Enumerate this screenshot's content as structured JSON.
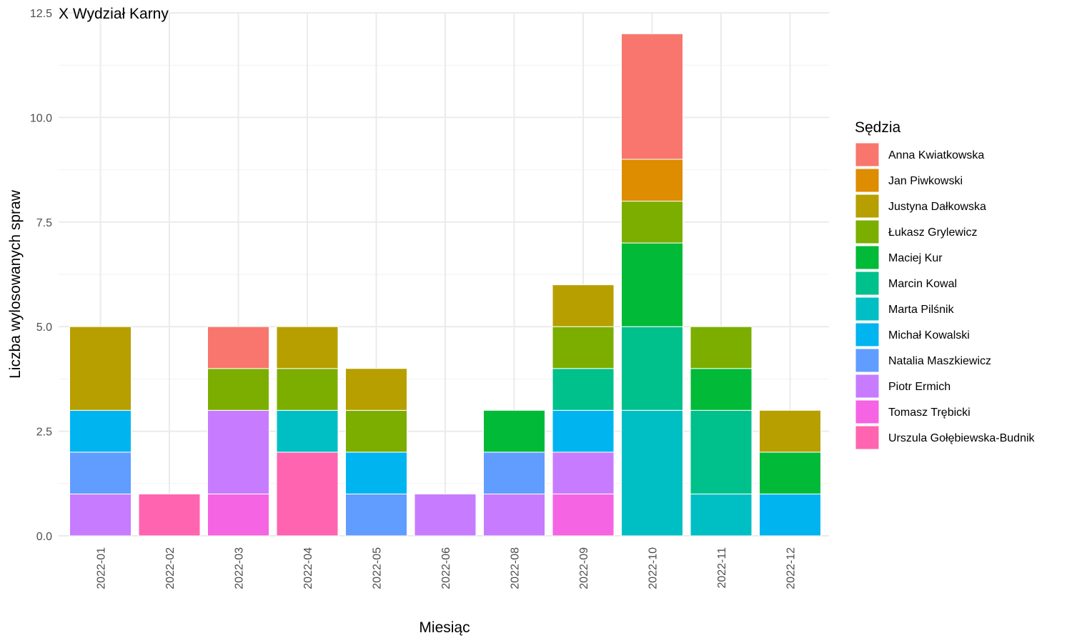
{
  "chart_data": {
    "type": "bar",
    "stacked": true,
    "title": "X Wydział Karny",
    "xlabel": "Miesiąc",
    "ylabel": "Liczba wylosowanych spraw",
    "ylim": [
      0,
      12.5
    ],
    "y_ticks": [
      0,
      2.5,
      5,
      7.5,
      10,
      12.5
    ],
    "y_tick_labels": [
      "0.0",
      "2.5",
      "5.0",
      "7.5",
      "10.0",
      "12.5"
    ],
    "grid": true,
    "legend_title": "Sędzia",
    "legend_position": "right",
    "categories": [
      "2022-01",
      "2022-02",
      "2022-03",
      "2022-04",
      "2022-05",
      "2022-06",
      "2022-08",
      "2022-09",
      "2022-10",
      "2022-11",
      "2022-12"
    ],
    "series": [
      {
        "name": "Anna Kwiatkowska",
        "color": "#F8766D",
        "values": [
          0,
          0,
          1,
          0,
          0,
          0,
          0,
          0,
          3,
          0,
          0
        ]
      },
      {
        "name": "Jan Piwkowski",
        "color": "#DE8C00",
        "values": [
          0,
          0,
          0,
          0,
          0,
          0,
          0,
          0,
          1,
          0,
          0
        ]
      },
      {
        "name": "Justyna Dałkowska",
        "color": "#B79F00",
        "values": [
          2,
          0,
          0,
          1,
          1,
          0,
          0,
          1,
          0,
          0,
          1
        ]
      },
      {
        "name": "Łukasz Grylewicz",
        "color": "#7CAE00",
        "values": [
          0,
          0,
          1,
          1,
          1,
          0,
          0,
          1,
          1,
          1,
          0
        ]
      },
      {
        "name": "Maciej Kur",
        "color": "#00BA38",
        "values": [
          0,
          0,
          0,
          0,
          0,
          0,
          1,
          0,
          2,
          1,
          1
        ]
      },
      {
        "name": "Marcin Kowal",
        "color": "#00C08B",
        "values": [
          0,
          0,
          0,
          0,
          0,
          0,
          0,
          1,
          2,
          2,
          0
        ]
      },
      {
        "name": "Marta Pilśnik",
        "color": "#00BFC4",
        "values": [
          0,
          0,
          0,
          1,
          0,
          0,
          0,
          0,
          3,
          1,
          0
        ]
      },
      {
        "name": "Michał Kowalski",
        "color": "#00B4F0",
        "values": [
          1,
          0,
          0,
          0,
          1,
          0,
          0,
          1,
          0,
          0,
          1
        ]
      },
      {
        "name": "Natalia Maszkiewicz",
        "color": "#619CFF",
        "values": [
          1,
          0,
          0,
          0,
          1,
          0,
          1,
          0,
          0,
          0,
          0
        ]
      },
      {
        "name": "Piotr Ermich",
        "color": "#C77CFF",
        "values": [
          1,
          0,
          2,
          0,
          0,
          1,
          1,
          1,
          0,
          0,
          0
        ]
      },
      {
        "name": "Tomasz Trębicki",
        "color": "#F564E3",
        "values": [
          0,
          0,
          1,
          0,
          0,
          0,
          0,
          1,
          0,
          0,
          0
        ]
      },
      {
        "name": "Urszula Gołębiewska-Budnik",
        "color": "#FF64B0",
        "values": [
          0,
          1,
          0,
          2,
          0,
          0,
          0,
          0,
          0,
          0,
          0
        ]
      }
    ]
  }
}
